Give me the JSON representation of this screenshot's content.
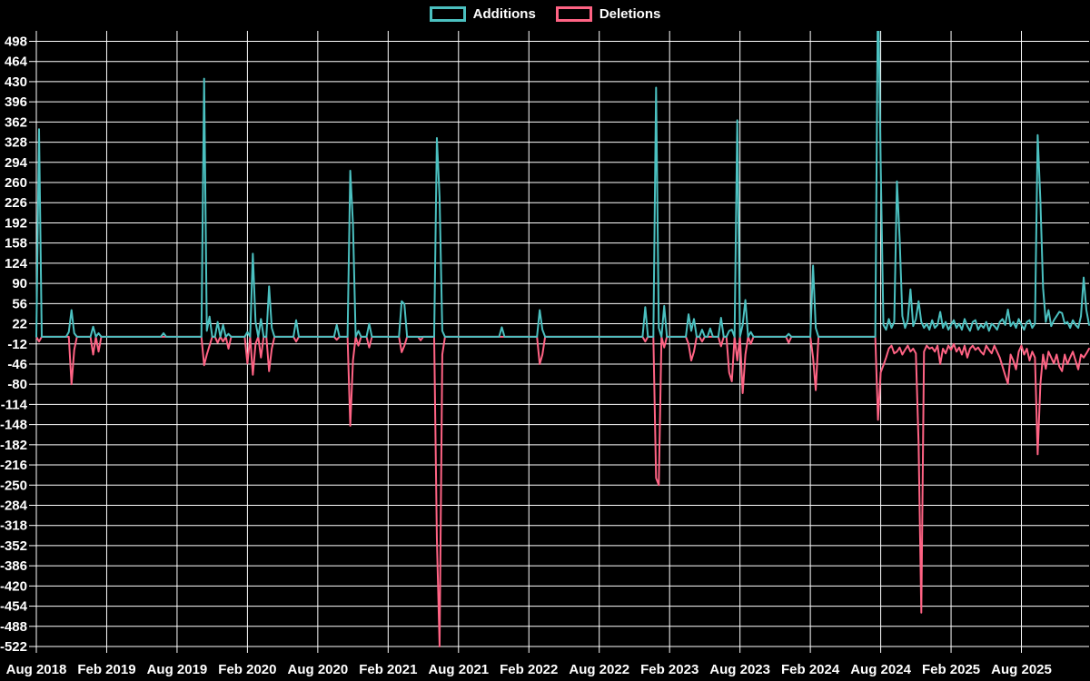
{
  "chart_data": {
    "type": "line",
    "title": "",
    "background_color": "#000000",
    "grid_color": "#ffffff",
    "text_color": "#ffffff",
    "legend": [
      {
        "label": "Additions",
        "color": "#4bc0c0"
      },
      {
        "label": "Deletions",
        "color": "#ff6384"
      }
    ],
    "legend_position": "top-center",
    "grid": true,
    "x_axis": {
      "n_points": 390,
      "points_unit": "weeks",
      "ticks_every_n_points": 26,
      "tick_labels": [
        "Aug 2018",
        "Feb 2019",
        "Aug 2019",
        "Feb 2020",
        "Aug 2020",
        "Feb 2021",
        "Aug 2021",
        "Feb 2022",
        "Aug 2022",
        "Feb 2023",
        "Aug 2023",
        "Feb 2024",
        "Aug 2024",
        "Feb 2025",
        "Aug 2025"
      ]
    },
    "y_axis": {
      "min": -522,
      "max": 498,
      "step": 34,
      "tick_labels": [
        "498",
        "464",
        "430",
        "396",
        "362",
        "328",
        "294",
        "260",
        "226",
        "192",
        "158",
        "124",
        "90",
        "56",
        "22",
        "-12",
        "-46",
        "-80",
        "-114",
        "-148",
        "-182",
        "-216",
        "-250",
        "-284",
        "-318",
        "-352",
        "-386",
        "-420",
        "-454",
        "-488",
        "-522"
      ]
    },
    "series": [
      {
        "name": "Additions",
        "color": "#4bc0c0",
        "default": 0,
        "spikes": {
          "1": 350,
          "12": 8,
          "13": 45,
          "14": 6,
          "21": 17,
          "23": 6,
          "47": 6,
          "62": 435,
          "63": 10,
          "64": 34,
          "67": 25,
          "69": 20,
          "71": 5,
          "78": 8,
          "80": 140,
          "81": 25,
          "83": 30,
          "86": 85,
          "87": 15,
          "96": 28,
          "111": 20,
          "116": 280,
          "117": 190,
          "119": 10,
          "123": 22,
          "135": 60,
          "136": 55,
          "148": 335,
          "149": 235,
          "150": 10,
          "172": 16,
          "186": 45,
          "187": 12,
          "225": 50,
          "229": 420,
          "230": 15,
          "232": 52,
          "241": 38,
          "242": 10,
          "243": 30,
          "246": 12,
          "249": 14,
          "253": 32,
          "256": 10,
          "257": 12,
          "259": 365,
          "261": 20,
          "262": 62,
          "264": 8,
          "278": 5,
          "287": 120,
          "288": 15,
          "311": 600,
          "312": 290
        }
      },
      {
        "name": "Deletions",
        "color": "#ff6384",
        "default": 0,
        "spikes": {
          "1": -8,
          "13": -80,
          "14": -22,
          "21": -30,
          "23": -25,
          "62": -48,
          "63": -30,
          "64": -15,
          "67": -10,
          "69": -8,
          "71": -20,
          "78": -45,
          "80": -64,
          "81": -12,
          "83": -35,
          "86": -58,
          "87": -20,
          "96": -8,
          "111": -5,
          "116": -150,
          "117": -40,
          "119": -15,
          "123": -18,
          "135": -26,
          "136": -15,
          "142": -6,
          "148": -340,
          "149": -522,
          "150": -30,
          "186": -46,
          "187": -30,
          "225": -8,
          "229": -238,
          "230": -250,
          "232": -18,
          "241": -12,
          "242": -40,
          "243": -25,
          "246": -8,
          "253": -16,
          "256": -60,
          "257": -75,
          "259": -40,
          "261": -95,
          "262": -30,
          "264": -12,
          "278": -10,
          "287": -35,
          "288": -90,
          "311": -140,
          "312": -60
        }
      }
    ],
    "noisy_tail": {
      "start_index": 313,
      "additions": [
        20,
        12,
        30,
        15,
        25,
        262,
        165,
        35,
        15,
        28,
        80,
        18,
        30,
        60,
        25,
        15,
        22,
        12,
        28,
        15,
        20,
        42,
        15,
        25,
        12,
        20,
        28,
        15,
        22,
        12,
        30,
        18,
        10,
        25,
        28,
        12,
        20,
        15,
        25,
        10,
        22,
        18,
        12,
        25,
        30,
        20,
        46,
        18,
        25,
        15,
        30,
        20,
        12,
        25,
        28,
        15,
        22,
        340,
        230,
        82,
        25,
        45,
        18,
        28,
        35,
        42,
        40,
        22,
        25,
        15,
        28,
        20,
        15,
        35,
        100,
        45,
        20
      ],
      "deletions": [
        -48,
        -35,
        -20,
        -15,
        -28,
        -25,
        -18,
        -30,
        -22,
        -15,
        -25,
        -20,
        -28,
        -180,
        -465,
        -25,
        -15,
        -20,
        -18,
        -25,
        -15,
        -46,
        -20,
        -28,
        -15,
        -22,
        -12,
        -25,
        -18,
        -30,
        -15,
        -35,
        -20,
        -15,
        -22,
        -18,
        -25,
        -30,
        -15,
        -22,
        -28,
        -15,
        -25,
        -35,
        -50,
        -65,
        -79,
        -30,
        -40,
        -55,
        -25,
        -15,
        -30,
        -20,
        -40,
        -25,
        -35,
        -198,
        -80,
        -30,
        -54,
        -25,
        -35,
        -45,
        -30,
        -50,
        -58,
        -30,
        -46,
        -35,
        -25,
        -40,
        -55,
        -30,
        -35,
        -28,
        -20
      ]
    }
  }
}
